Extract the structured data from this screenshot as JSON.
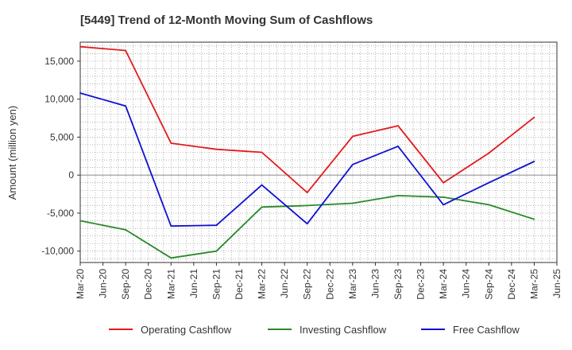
{
  "chart_data": {
    "type": "line",
    "title": "[5449]  Trend of 12-Month Moving Sum of Cashflows",
    "xlabel": "",
    "ylabel": "Amount (million yen)",
    "x_ticks": [
      "Mar-20",
      "Jun-20",
      "Sep-20",
      "Dec-20",
      "Mar-21",
      "Jun-21",
      "Sep-21",
      "Dec-21",
      "Mar-22",
      "Jun-22",
      "Sep-22",
      "Dec-22",
      "Mar-23",
      "Jun-23",
      "Sep-23",
      "Dec-23",
      "Mar-24",
      "Jun-24",
      "Sep-24",
      "Dec-24",
      "Mar-25",
      "Jun-25"
    ],
    "y_ticks": [
      15000,
      10000,
      5000,
      0,
      -5000,
      -10000
    ],
    "y_tick_labels": [
      "15,000",
      "10,000",
      "5,000",
      "0",
      "-5,000",
      "-10,000"
    ],
    "ylim": [
      -11500,
      17500
    ],
    "grid": true,
    "legend_position": "bottom",
    "series": [
      {
        "name": "Operating Cashflow",
        "color": "#e31a1c",
        "x": [
          "Mar-20",
          "Sep-20",
          "Mar-21",
          "Sep-21",
          "Mar-22",
          "Sep-22",
          "Mar-23",
          "Sep-23",
          "Mar-24",
          "Sep-24",
          "Mar-25"
        ],
        "values": [
          16900,
          16400,
          4200,
          3400,
          3000,
          -2300,
          5100,
          6500,
          -1000,
          2900,
          7600
        ]
      },
      {
        "name": "Investing Cashflow",
        "color": "#2a8a2a",
        "x": [
          "Mar-20",
          "Sep-20",
          "Mar-21",
          "Sep-21",
          "Mar-22",
          "Sep-22",
          "Mar-23",
          "Sep-23",
          "Mar-24",
          "Sep-24",
          "Mar-25"
        ],
        "values": [
          -6000,
          -7200,
          -10900,
          -10000,
          -4200,
          -4000,
          -3700,
          -2700,
          -2900,
          -3900,
          -5800
        ]
      },
      {
        "name": "Free Cashflow",
        "color": "#1010d0",
        "x": [
          "Mar-20",
          "Sep-20",
          "Mar-21",
          "Sep-21",
          "Mar-22",
          "Sep-22",
          "Mar-23",
          "Sep-23",
          "Mar-24",
          "Sep-24",
          "Mar-25"
        ],
        "values": [
          10800,
          9100,
          -6700,
          -6600,
          -1300,
          -6400,
          1400,
          3800,
          -3900,
          -1000,
          1800
        ]
      }
    ]
  }
}
